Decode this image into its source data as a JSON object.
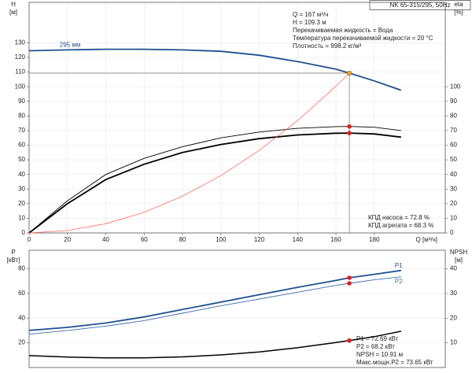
{
  "chart_data": [
    {
      "type": "line",
      "title": "NK 65-315/295, 50Hz",
      "ylabel": "H",
      "yunit": "[м]",
      "y2label": "eta",
      "y2unit": "[%]",
      "xlabel": "Q [м³/ч]",
      "x": [
        0,
        20,
        40,
        60,
        80,
        100,
        120,
        140,
        160,
        167,
        180,
        194
      ],
      "xlim": [
        0,
        217
      ],
      "xticks": [
        0,
        20,
        40,
        60,
        80,
        100,
        120,
        140,
        160,
        180
      ],
      "ylim": [
        0,
        155
      ],
      "yticks": [
        0,
        10,
        20,
        30,
        40,
        50,
        60,
        70,
        80,
        90,
        100,
        110,
        120,
        130
      ],
      "y2lim": [
        0,
        155
      ],
      "y2ticks": [
        0,
        10,
        20,
        30,
        40,
        50,
        60,
        70,
        80,
        90,
        100
      ],
      "grid": true,
      "duty_x": 167,
      "series": [
        {
          "name": "295 мм",
          "color": "#1f4f8f",
          "width": 1.8,
          "marker": "#f5a623",
          "guide": true,
          "label_pos": "start",
          "values": [
            124.6,
            125.2,
            125.6,
            125.6,
            125.2,
            124.2,
            121.5,
            117.2,
            112,
            109.3,
            104,
            97.6
          ]
        },
        {
          "color": "#000000",
          "width": 0.9,
          "axis": "y2",
          "marker": "#e02020",
          "values": [
            0,
            22,
            40,
            51,
            59,
            65,
            69,
            71.5,
            72.7,
            72.8,
            72.3,
            70
          ]
        },
        {
          "color": "#000000",
          "width": 1.8,
          "axis": "y2",
          "marker": "#e02020",
          "values": [
            0,
            20,
            36.5,
            47,
            55,
            60.5,
            64.5,
            67,
            68.2,
            68.3,
            67.7,
            65.5
          ]
        },
        {
          "color": "#ff6a5a",
          "width": 0.8,
          "values": [
            0,
            1.6,
            6.3,
            14.1,
            25.1,
            39.2,
            56.4,
            76.8,
            100.3,
            109.3,
            null,
            null
          ]
        }
      ],
      "info": [
        "Q = 167 м³/ч",
        "H = 109.3 м",
        "Перекачиваемая жидкость = Вода",
        "Температура перекачиваемой жидкости = 20 °C",
        "Плотность = 998.2 кг/м³"
      ],
      "notes": [
        "КПД насоса = 72.8 %",
        "КПД агрегата = 68.3 %"
      ]
    },
    {
      "type": "line",
      "ylabel": "P",
      "yunit": "[кВт]",
      "y2label": "NPSH",
      "y2unit": "[м]",
      "x": [
        0,
        20,
        40,
        60,
        80,
        100,
        120,
        140,
        160,
        167,
        180,
        194
      ],
      "xlim": [
        0,
        217
      ],
      "ylim": [
        0,
        95
      ],
      "yticks": [
        20,
        40,
        60,
        80
      ],
      "y2lim": [
        0,
        47.5
      ],
      "y2ticks": [
        10,
        20,
        30,
        40
      ],
      "grid": true,
      "duty_x": 167,
      "series": [
        {
          "name": "P1",
          "color": "#1f4f8f",
          "width": 1.8,
          "marker": "#e02020",
          "label_pos": "end",
          "values": [
            30,
            32.5,
            36,
            41,
            47,
            53,
            59,
            65,
            70.5,
            72.69,
            75.5,
            78.6
          ]
        },
        {
          "name": "P2",
          "color": "#3a6db0",
          "width": 0.9,
          "marker": "#e02020",
          "label_pos": "end",
          "values": [
            27,
            30,
            33.5,
            38,
            44,
            50,
            55.5,
            61,
            66.5,
            68.2,
            71,
            73.5
          ]
        },
        {
          "color": "#000000",
          "width": 1.5,
          "axis": "y2",
          "marker": "#e02020",
          "values": [
            4.8,
            4.2,
            3.9,
            3.9,
            4.3,
            5.1,
            6.3,
            8,
            10.1,
            10.91,
            12.5,
            14.7
          ]
        }
      ],
      "notes": [
        "P1 = 72.69 кВт",
        "P2 = 68.2 кВт",
        "NPSH = 10.91 м",
        "Макс.мощн.P2 = 73.65 кВт"
      ]
    }
  ]
}
